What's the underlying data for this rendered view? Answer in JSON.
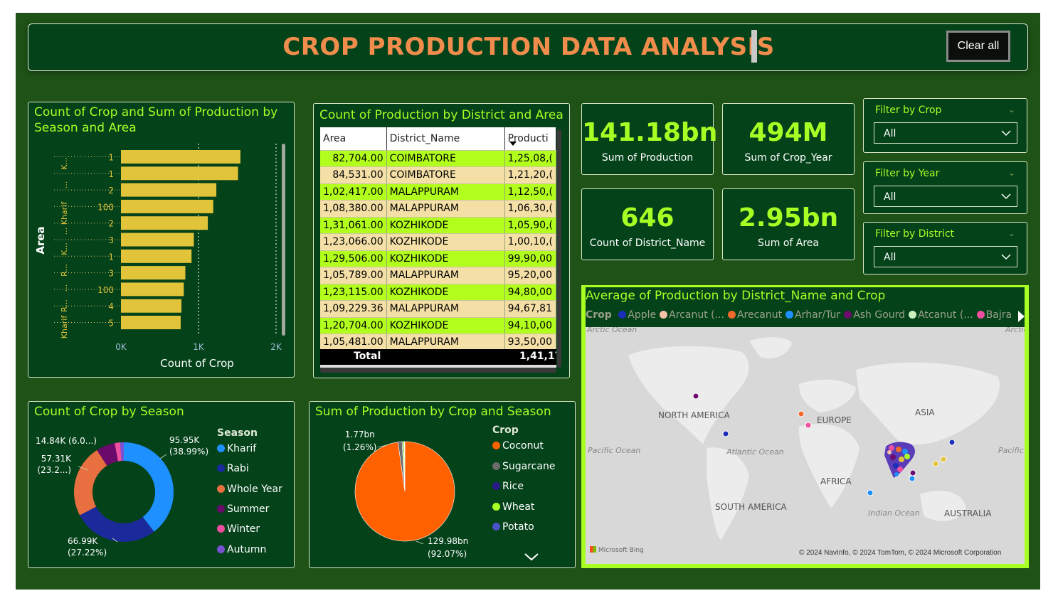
{
  "header": {
    "title": "CROP PRODUCTION DATA ANALYSIS",
    "clear_label": "Clear all"
  },
  "kpis": [
    {
      "value": "141.18bn",
      "label": "Sum of Production"
    },
    {
      "value": "494M",
      "label": "Sum of Crop_Year"
    },
    {
      "value": "646",
      "label": "Count of District_Name"
    },
    {
      "value": "2.95bn",
      "label": "Sum of Area"
    }
  ],
  "filters": [
    {
      "title": "Filter by Crop",
      "value": "All"
    },
    {
      "title": "Filter by Year",
      "value": "All"
    },
    {
      "title": "Filter by District",
      "value": "All"
    }
  ],
  "bar_panel": {
    "title_line1": "Count of Crop and Sum of Production by",
    "title_line2": "Season and Area",
    "group_labels": [
      "K...",
      "...",
      "Kharif",
      "...",
      "K...",
      "R...",
      "...",
      "R...",
      "Kharif"
    ]
  },
  "table_panel": {
    "title": "Count of Production by District and Area",
    "columns": [
      "Area",
      "District_Name",
      "Producti"
    ],
    "rows": [
      [
        "82,704.00",
        "COIMBATORE",
        "1,25,08,("
      ],
      [
        "84,531.00",
        "COIMBATORE",
        "1,21,20,("
      ],
      [
        "1,02,417.00",
        "MALAPPURAM",
        "1,12,50,("
      ],
      [
        "1,08,380.00",
        "MALAPPURAM",
        "1,06,30,("
      ],
      [
        "1,31,061.00",
        "KOZHIKODE",
        "1,05,90,("
      ],
      [
        "1,23,066.00",
        "KOZHIKODE",
        "1,00,10,("
      ],
      [
        "1,29,506.00",
        "KOZHIKODE",
        "99,90,00"
      ],
      [
        "1,05,789.00",
        "MALAPPURAM",
        "95,20,00"
      ],
      [
        "1,23,115.00",
        "KOZHIKODE",
        "94,80,00"
      ],
      [
        "1,09,229.36",
        "MALAPPURAM",
        "94,67,81"
      ],
      [
        "1,20,704.00",
        "KOZHIKODE",
        "94,10,00"
      ],
      [
        "1,05,481.00",
        "MALAPPURAM",
        "93,50,00"
      ]
    ],
    "total_label": "Total",
    "total_value": "1,41,17,"
  },
  "donut_panel": {
    "title": "Count of Crop by Season",
    "legend_title": "Season",
    "labels": {
      "kharif_a": "95.95K",
      "kharif_b": "(38.99%)",
      "rabi_a": "66.99K",
      "rabi_b": "(27.22%)",
      "whole_a": "57.31K",
      "whole_b": "(23.2...)",
      "summer": "14.84K (6.0...)"
    }
  },
  "pie_panel": {
    "title": "Sum of Production by Crop and Season",
    "legend_title": "Crop",
    "labels": {
      "small_a": "1.77bn",
      "small_b": "(1.26%)",
      "big_a": "129.98bn",
      "big_b": "(92.07%)"
    }
  },
  "map_panel": {
    "title": "Average of Production by District_Name and Crop",
    "legend_title": "Crop",
    "legend": [
      {
        "name": "Apple",
        "color": "#1b2eb8"
      },
      {
        "name": "Arcanut (...",
        "color": "#f4c2a8"
      },
      {
        "name": "Arecanut",
        "color": "#f06a2c"
      },
      {
        "name": "Arhar/Tur",
        "color": "#1e90ff"
      },
      {
        "name": "Ash Gourd",
        "color": "#6e0b6e"
      },
      {
        "name": "Atcanut (...",
        "color": "#ccf0c0"
      },
      {
        "name": "Bajra",
        "color": "#ee4fa0"
      }
    ],
    "places": {
      "arctic_l": "Arctic Ocean",
      "arctic_r": "Arctic",
      "na": "NORTH AMERICA",
      "eu": "EUROPE",
      "asia": "ASIA",
      "pac_l": "Pacific Ocean",
      "atl": "Atlantic Ocean",
      "pac_r": "Pacific",
      "af": "AFRICA",
      "sa": "SOUTH AMERICA",
      "ind": "Indian Ocean",
      "au": "AUSTRALIA"
    },
    "bing": "Microsoft Bing",
    "copyright": "© 2024 NavInfo, © 2024 TomTom, © 2024 Microsoft Corporation"
  },
  "chart_data": [
    {
      "type": "bar",
      "title": "Count of Crop and Sum of Production by Season and Area",
      "xlabel": "Count of Crop",
      "ylabel": "Area",
      "xlim": [
        0,
        2000
      ],
      "xticks": [
        "0K",
        "1K",
        "2K"
      ],
      "categories": [
        "1",
        "1",
        "2",
        "100",
        "2",
        "3",
        "1",
        "3",
        "100",
        "4",
        "5"
      ],
      "values": [
        1540,
        1510,
        1230,
        1190,
        1120,
        940,
        910,
        830,
        810,
        780,
        770
      ],
      "color": "#e2c43b"
    },
    {
      "type": "pie",
      "title": "Count of Crop by Season",
      "categories": [
        "Kharif",
        "Rabi",
        "Whole Year",
        "Summer",
        "Winter",
        "Autumn"
      ],
      "values": [
        95950,
        66990,
        57310,
        14840,
        4300,
        2800
      ],
      "colors": [
        "#1e90ff",
        "#1a2a9a",
        "#e87040",
        "#6a0a6a",
        "#ee4fa0",
        "#7b52d6"
      ]
    },
    {
      "type": "pie",
      "title": "Sum of Production by Crop and Season",
      "categories": [
        "Coconut",
        "Sugarcane",
        "Rice",
        "Wheat",
        "Potato"
      ],
      "values": [
        129.98,
        1.77,
        0.35,
        0.62,
        0.2
      ],
      "colors": [
        "#ff6100",
        "#6b6b6b",
        "#2a1a88",
        "#a8ff24",
        "#4a52c8"
      ]
    }
  ]
}
